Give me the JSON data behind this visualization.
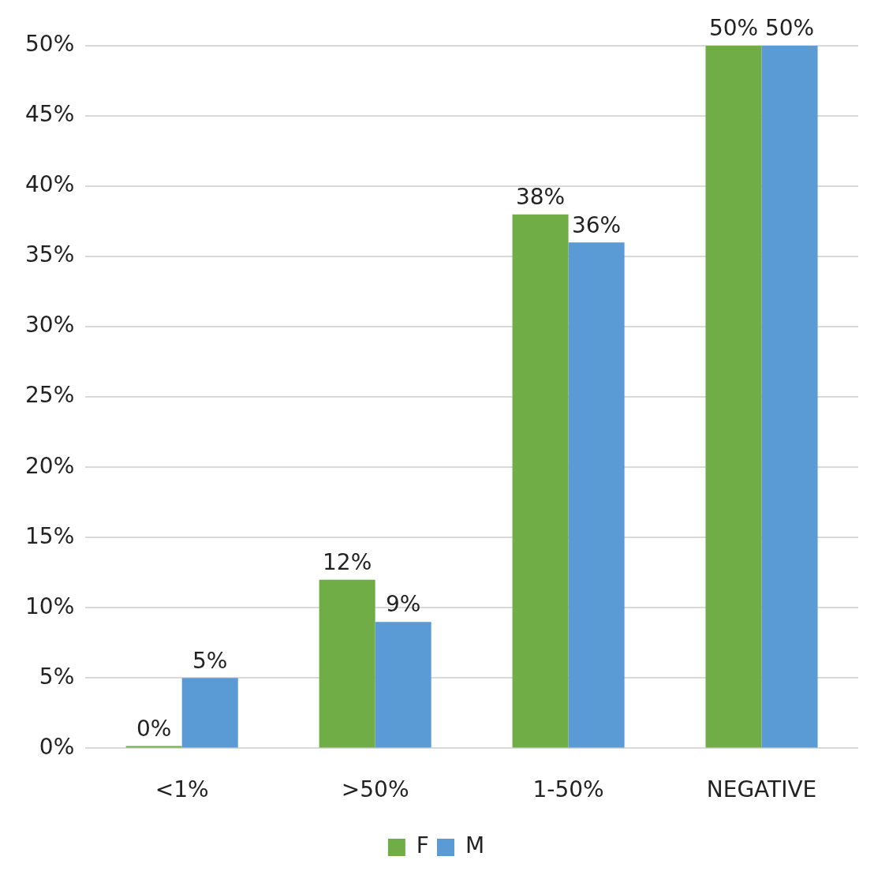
{
  "chart_data": {
    "type": "bar",
    "categories": [
      "<1%",
      ">50%",
      "1-50%",
      "NEGATIVE"
    ],
    "series": [
      {
        "name": "F",
        "color": "#70ad47",
        "values": [
          0,
          12,
          38,
          50
        ],
        "value_labels": [
          "0%",
          "12%",
          "38%",
          "50%"
        ]
      },
      {
        "name": "M",
        "color": "#5b9bd5",
        "values": [
          5,
          9,
          36,
          50
        ],
        "value_labels": [
          "5%",
          "9%",
          "36%",
          "50%"
        ]
      }
    ],
    "ylim": [
      0,
      50
    ],
    "yticks": [
      {
        "value": 0,
        "label": "0%"
      },
      {
        "value": 5,
        "label": "5%"
      },
      {
        "value": 10,
        "label": "10%"
      },
      {
        "value": 15,
        "label": "15%"
      },
      {
        "value": 20,
        "label": "20%"
      },
      {
        "value": 25,
        "label": "25%"
      },
      {
        "value": 30,
        "label": "30%"
      },
      {
        "value": 35,
        "label": "35%"
      },
      {
        "value": 40,
        "label": "40%"
      },
      {
        "value": 45,
        "label": "45%"
      },
      {
        "value": 50,
        "label": "50%"
      }
    ],
    "grid": "y",
    "legend": "bottom"
  }
}
